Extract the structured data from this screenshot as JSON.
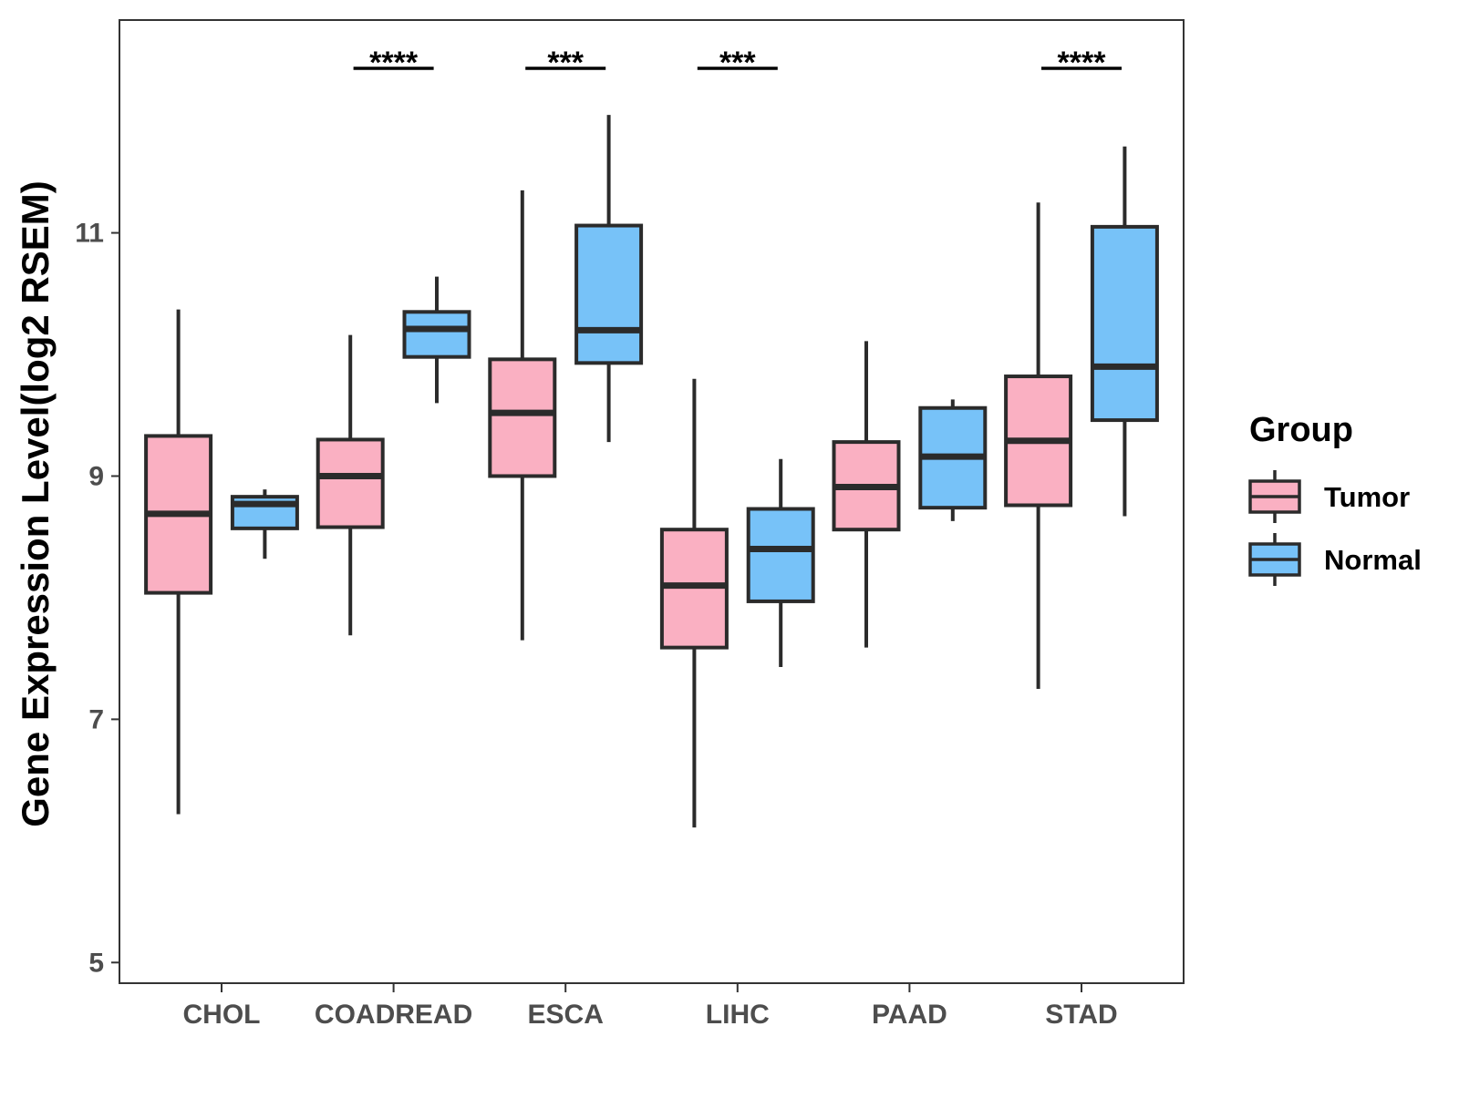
{
  "chart_data": {
    "type": "box",
    "title": "",
    "xlabel": "",
    "ylabel": "Gene Expression Level(log2 RSEM)",
    "ylim": [
      4.83,
      12.75
    ],
    "yticks": [
      5,
      7,
      9,
      11
    ],
    "grid": false,
    "categories": [
      "CHOL",
      "COADREAD",
      "ESCA",
      "LIHC",
      "PAAD",
      "STAD"
    ],
    "legend": {
      "title": "Group",
      "position": "right",
      "entries": [
        "Tumor",
        "Normal"
      ]
    },
    "series": [
      {
        "name": "Tumor",
        "color": "#FAB0C2",
        "boxes": [
          {
            "category": "CHOL",
            "whisker_low": 6.22,
            "q1": 8.04,
            "median": 8.69,
            "q3": 9.33,
            "whisker_high": 10.37
          },
          {
            "category": "COADREAD",
            "whisker_low": 7.69,
            "q1": 8.58,
            "median": 9.0,
            "q3": 9.3,
            "whisker_high": 10.16
          },
          {
            "category": "ESCA",
            "whisker_low": 7.65,
            "q1": 9.0,
            "median": 9.52,
            "q3": 9.96,
            "whisker_high": 11.35
          },
          {
            "category": "LIHC",
            "whisker_low": 6.11,
            "q1": 7.59,
            "median": 8.1,
            "q3": 8.56,
            "whisker_high": 9.8
          },
          {
            "category": "PAAD",
            "whisker_low": 7.59,
            "q1": 8.56,
            "median": 8.91,
            "q3": 9.28,
            "whisker_high": 10.11
          },
          {
            "category": "STAD",
            "whisker_low": 7.25,
            "q1": 8.76,
            "median": 9.29,
            "q3": 9.82,
            "whisker_high": 11.25
          }
        ]
      },
      {
        "name": "Normal",
        "color": "#77C2F8",
        "boxes": [
          {
            "category": "CHOL",
            "whisker_low": 8.32,
            "q1": 8.57,
            "median": 8.77,
            "q3": 8.83,
            "whisker_high": 8.89
          },
          {
            "category": "COADREAD",
            "whisker_low": 9.6,
            "q1": 9.98,
            "median": 10.21,
            "q3": 10.35,
            "whisker_high": 10.64
          },
          {
            "category": "ESCA",
            "whisker_low": 9.28,
            "q1": 9.93,
            "median": 10.2,
            "q3": 11.06,
            "whisker_high": 11.97
          },
          {
            "category": "LIHC",
            "whisker_low": 7.43,
            "q1": 7.97,
            "median": 8.4,
            "q3": 8.73,
            "whisker_high": 9.14
          },
          {
            "category": "PAAD",
            "whisker_low": 8.63,
            "q1": 8.74,
            "median": 9.16,
            "q3": 9.56,
            "whisker_high": 9.63
          },
          {
            "category": "STAD",
            "whisker_low": 8.67,
            "q1": 9.46,
            "median": 9.9,
            "q3": 11.05,
            "whisker_high": 11.71
          }
        ]
      }
    ],
    "annotations": [
      {
        "category": "COADREAD",
        "text": "****"
      },
      {
        "category": "ESCA",
        "text": "***"
      },
      {
        "category": "LIHC",
        "text": "***"
      },
      {
        "category": "STAD",
        "text": "****"
      }
    ]
  }
}
